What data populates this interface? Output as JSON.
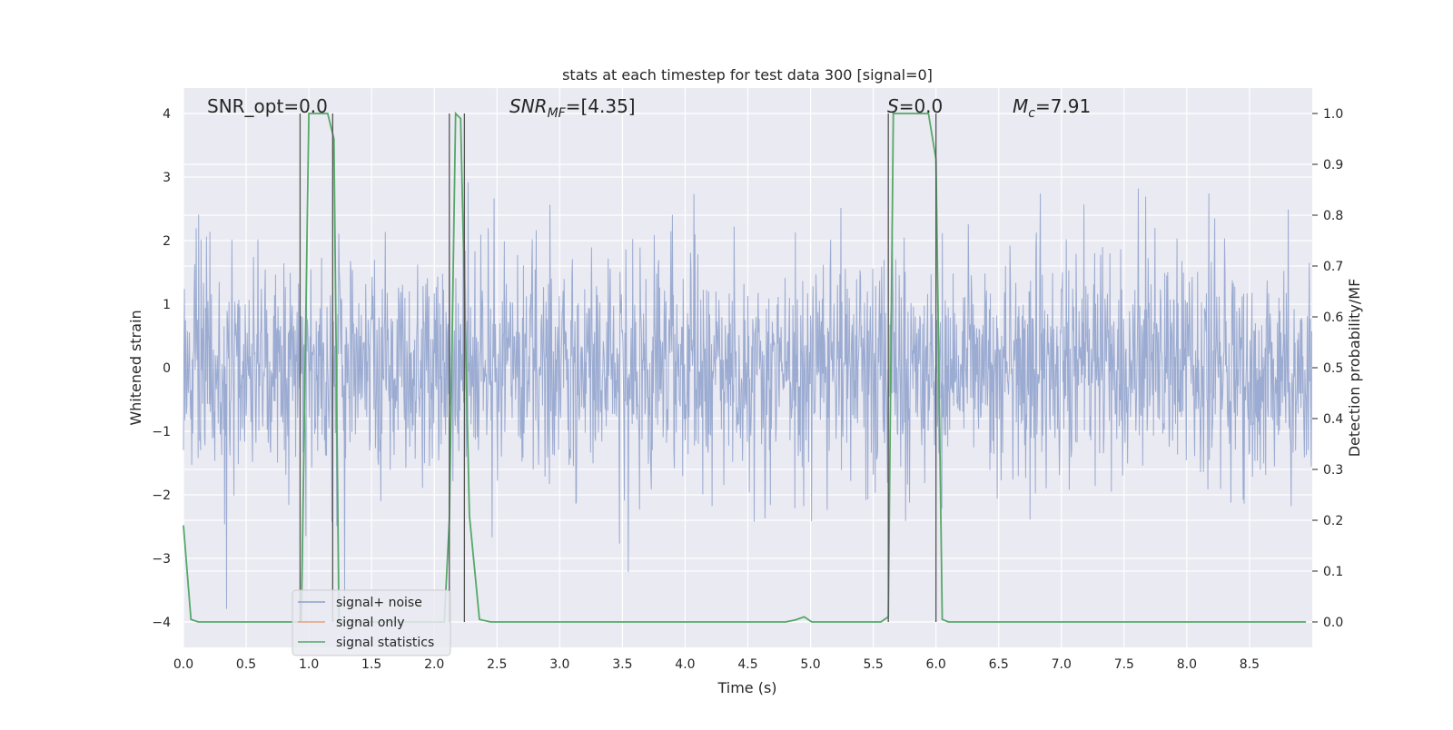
{
  "chart_data": {
    "type": "line",
    "title": "stats at each timestep for test data 300 [signal=0]",
    "xlabel": "Time (s)",
    "ylabel_left": "Whitened strain",
    "ylabel_right": "Detection probability/MF",
    "xlim": [
      0.0,
      9.0
    ],
    "ylim_left": [
      -4.4,
      4.4
    ],
    "ylim_right": [
      -0.05,
      1.05
    ],
    "x_ticks": [
      "0.0",
      "0.5",
      "1.0",
      "1.5",
      "2.0",
      "2.5",
      "3.0",
      "3.5",
      "4.0",
      "4.5",
      "5.0",
      "5.5",
      "6.0",
      "6.5",
      "7.0",
      "7.5",
      "8.0",
      "8.5"
    ],
    "y_ticks_left": [
      "4",
      "3",
      "2",
      "1",
      "0",
      "−1",
      "−2",
      "−3",
      "−4"
    ],
    "y_ticks_right": [
      "1.0",
      "0.9",
      "0.8",
      "0.7",
      "0.6",
      "0.5",
      "0.4",
      "0.3",
      "0.2",
      "0.1",
      "0.0"
    ],
    "grid": true,
    "legend_placement": "lower-left",
    "annotations": {
      "snr_opt": "SNR_opt=0.0",
      "snr_mf_main": "SNR",
      "snr_mf_sub": "MF",
      "snr_mf_rest": "=[4.35]",
      "s_main": "S",
      "s_rest": "=0.0",
      "mc_main": "M",
      "mc_sub": "c",
      "mc_rest": "=7.91"
    },
    "series": [
      {
        "name": "signal+ noise",
        "color": "#8da0cb",
        "axis": "left",
        "kind": "noise",
        "amplitude_sigma": 0.9,
        "sample_rate": 256
      },
      {
        "name": "signal only",
        "color": "#e5a07f",
        "axis": "left",
        "kind": "flat",
        "values": []
      },
      {
        "name": "signal statistics",
        "color": "#55a868",
        "axis": "right",
        "x": [
          0.0,
          0.06,
          0.12,
          0.18,
          0.9,
          0.94,
          0.97,
          1.0,
          1.15,
          1.2,
          1.24,
          1.3,
          2.03,
          2.08,
          2.12,
          2.17,
          2.21,
          2.28,
          2.36,
          2.45,
          2.55,
          4.8,
          4.88,
          4.95,
          5.01,
          5.08,
          5.56,
          5.62,
          5.66,
          5.72,
          5.82,
          5.94,
          6.0,
          6.05,
          6.1,
          6.2,
          8.95
        ],
        "y": [
          0.19,
          0.005,
          0.0,
          0.0,
          0.0,
          0.0,
          0.5,
          1.0,
          1.0,
          0.95,
          0.0,
          0.0,
          0.0,
          0.0,
          0.2,
          1.0,
          0.99,
          0.21,
          0.005,
          0.0,
          0.0,
          0.0,
          0.004,
          0.01,
          0.0,
          0.0,
          0.0,
          0.01,
          1.0,
          1.0,
          1.0,
          1.0,
          0.91,
          0.005,
          0.0,
          0.0,
          0.0
        ]
      }
    ],
    "vertical_markers_x": [
      0.93,
      1.19,
      2.12,
      2.24,
      5.62,
      6.0
    ]
  }
}
